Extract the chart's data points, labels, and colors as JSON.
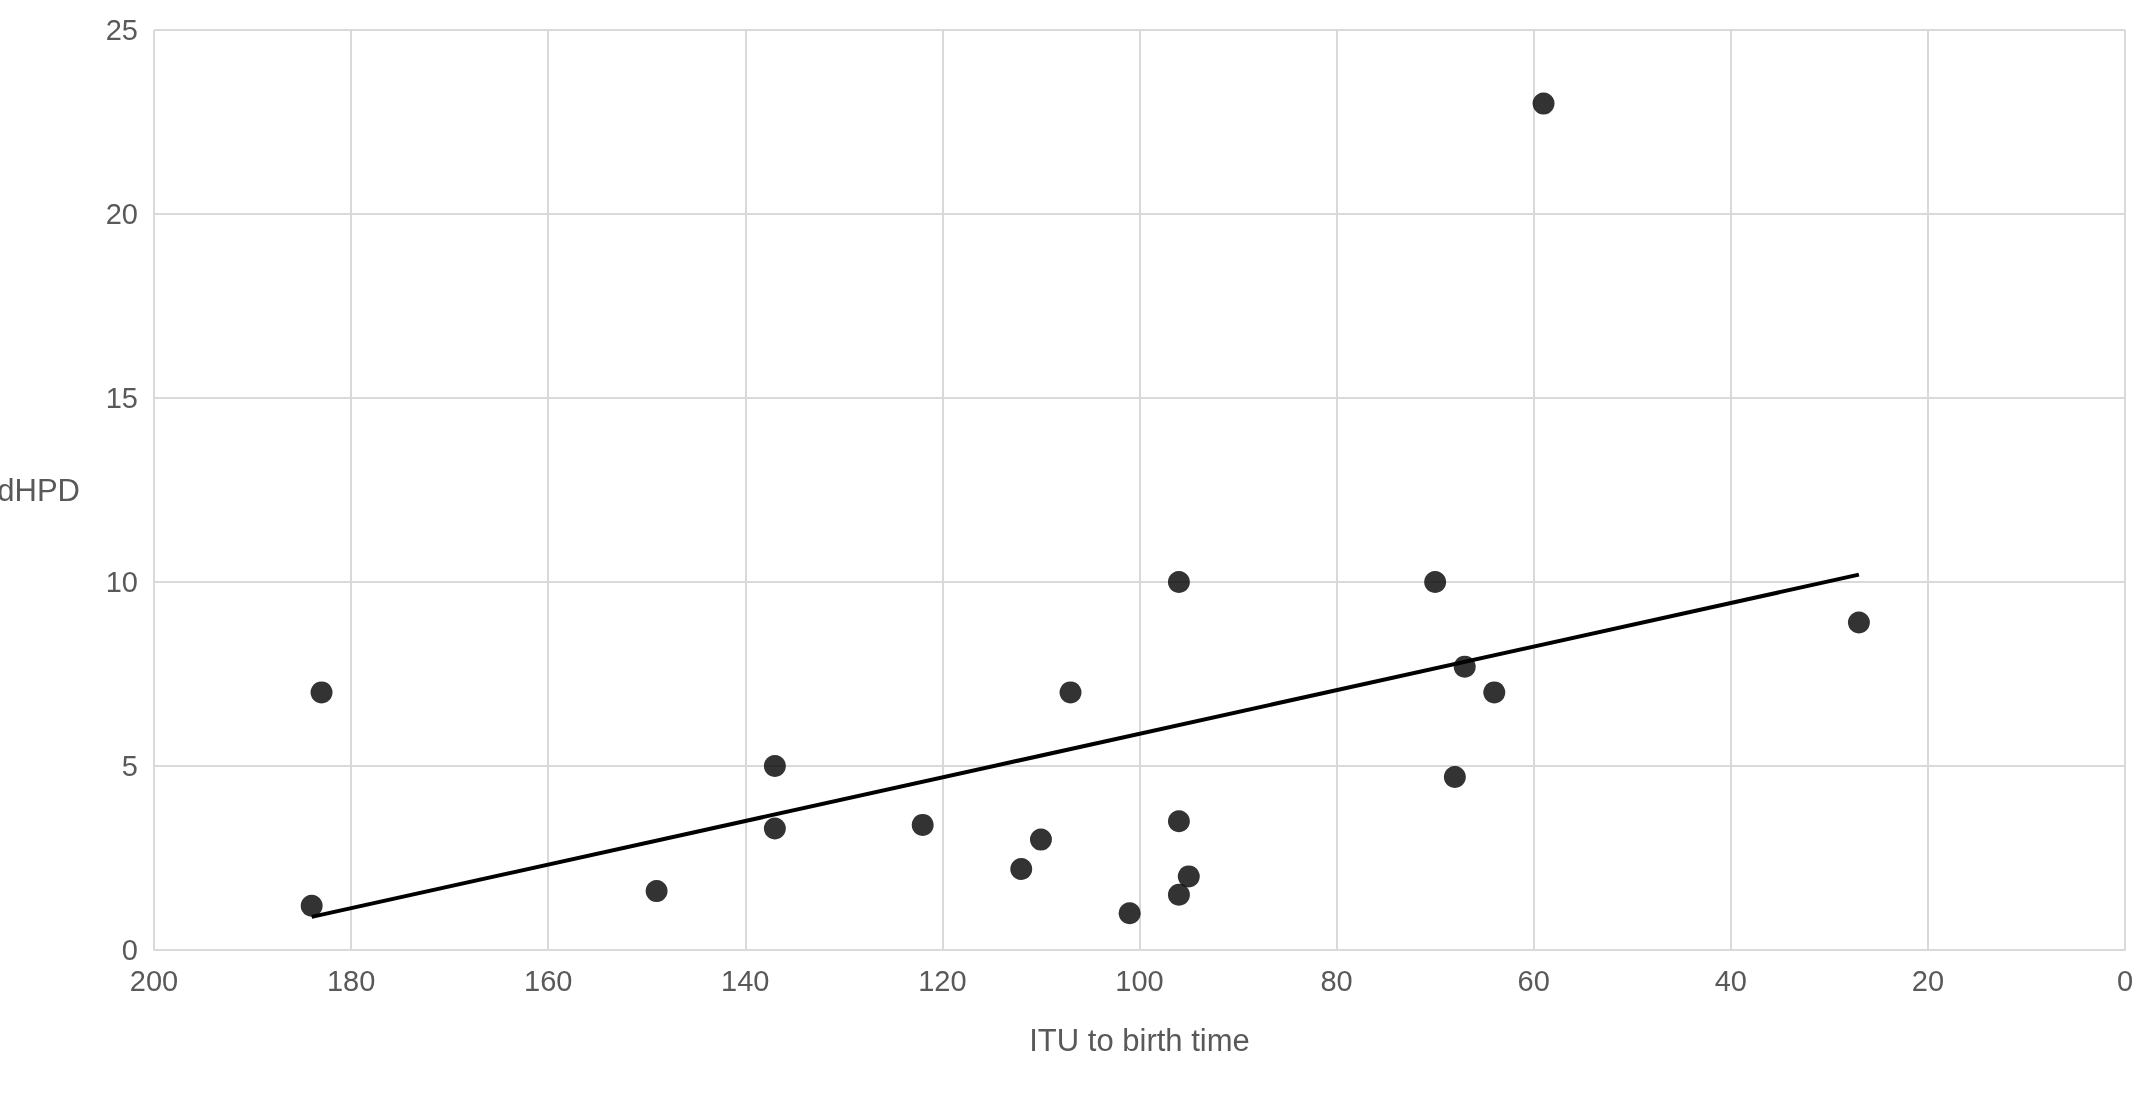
{
  "chart_data": {
    "type": "scatter",
    "xlabel": "ITU to birth time",
    "ylabel": "dHPD",
    "xlim": [
      200,
      0
    ],
    "xticks": [
      200,
      180,
      160,
      140,
      120,
      100,
      80,
      60,
      40,
      20,
      0
    ],
    "ylim": [
      0,
      25
    ],
    "yticks": [
      0,
      5,
      10,
      15,
      20,
      25
    ],
    "grid": true,
    "marker": "circle",
    "series": [
      {
        "color": "#000000",
        "x": [
          184,
          183,
          149,
          137,
          137,
          122,
          112,
          110,
          107,
          101,
          96,
          96,
          96,
          95,
          70,
          68,
          67,
          64,
          59,
          27
        ],
        "values": [
          1.2,
          7,
          1.6,
          5,
          3.3,
          3.4,
          2.2,
          3,
          7,
          1,
          10,
          3.5,
          1.5,
          2,
          10,
          4.7,
          7.7,
          7,
          23,
          8.9
        ]
      },
      {
        "type": "line",
        "color": "#000000",
        "marker": "none",
        "line_style": "solid",
        "x": [
          184,
          27
        ],
        "values": [
          0.9,
          10.2
        ]
      }
    ]
  }
}
